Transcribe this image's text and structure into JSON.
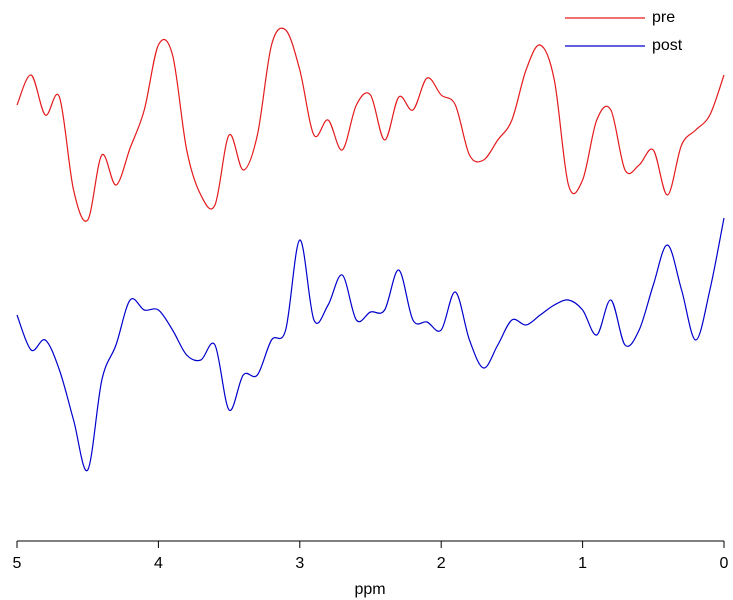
{
  "chart_data": {
    "type": "line",
    "x_label": "ppm",
    "x": [
      5.0,
      4.9,
      4.8,
      4.7,
      4.6,
      4.5,
      4.4,
      4.3,
      4.2,
      4.1,
      4.0,
      3.9,
      3.8,
      3.7,
      3.6,
      3.5,
      3.4,
      3.3,
      3.2,
      3.1,
      3.0,
      2.9,
      2.8,
      2.7,
      2.6,
      2.5,
      2.4,
      2.3,
      2.2,
      2.1,
      2.0,
      1.9,
      1.8,
      1.7,
      1.6,
      1.5,
      1.4,
      1.3,
      1.2,
      1.1,
      1.0,
      0.9,
      0.8,
      0.7,
      0.6,
      0.5,
      0.4,
      0.3,
      0.2,
      0.1,
      0.0
    ],
    "series": [
      {
        "name": "pre",
        "color": "#e41a1c",
        "values": [
          445,
          475,
          435,
          453,
          360,
          330,
          395,
          365,
          402,
          440,
          505,
          495,
          400,
          355,
          345,
          415,
          380,
          415,
          505,
          520,
          480,
          415,
          430,
          400,
          445,
          455,
          410,
          453,
          440,
          472,
          455,
          445,
          395,
          390,
          410,
          430,
          480,
          505,
          470,
          365,
          370,
          430,
          440,
          380,
          385,
          400,
          355,
          405,
          420,
          435,
          475
        ]
      },
      {
        "name": "post",
        "color": "#0000cc",
        "values": [
          235,
          200,
          210,
          180,
          130,
          80,
          170,
          205,
          250,
          240,
          240,
          220,
          195,
          190,
          205,
          140,
          175,
          175,
          210,
          220,
          310,
          230,
          245,
          275,
          230,
          238,
          240,
          280,
          230,
          228,
          220,
          258,
          210,
          182,
          205,
          230,
          225,
          235,
          245,
          250,
          240,
          215,
          250,
          205,
          220,
          265,
          305,
          260,
          210,
          260,
          332
        ]
      }
    ],
    "xlim": [
      5,
      0
    ],
    "xticks": [
      5,
      4,
      3,
      2,
      1,
      0
    ],
    "ylim": [
      0,
      550
    ],
    "legend": "top-right"
  }
}
